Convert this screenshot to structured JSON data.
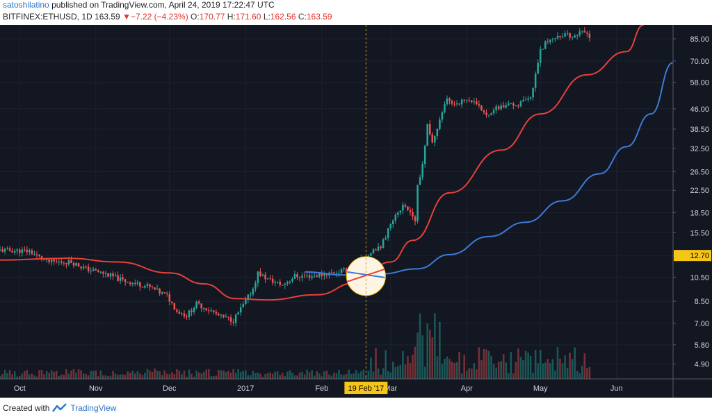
{
  "header": {
    "author": "satoshilatino",
    "published": "published on TradingView.com, April 24, 2019 17:22:47 UTC",
    "symbol": "BITFINEX:ETHUSD, 1D",
    "last": "163.59",
    "change": "−7.22 (−4.23%)",
    "o_label": "O:",
    "o": "170.77",
    "h_label": "H:",
    "h": "171.60",
    "l_label": "L:",
    "l": "162.56",
    "c_label": "C:",
    "c": "163.59",
    "down_arrow": "▼"
  },
  "footer": {
    "created_with": "Created with",
    "brand": "TradingView",
    "logo_icon": "tradingview-logo-icon"
  },
  "colors": {
    "background": "#131722",
    "grid": "#1e2230",
    "up": "#26a69a",
    "down": "#ef5350",
    "ma_fast": "#e8403a",
    "ma_slow": "#3f7ad8",
    "axis_text": "#d1d4dc",
    "price_label_bg": "#f5c518",
    "highlight_circle": "#fdf4e3"
  },
  "chart_data": {
    "type": "candlestick",
    "symbol": "BITFINEX:ETHUSD",
    "interval": "1D",
    "y_scale": "log",
    "ylim": [
      4.3,
      96
    ],
    "x_range": [
      "2016-09-23",
      "2017-06-24"
    ],
    "y_ticks": [
      "85.00",
      "70.00",
      "58.00",
      "46.00",
      "38.50",
      "32.50",
      "26.50",
      "22.50",
      "18.50",
      "15.50",
      "12.70",
      "10.50",
      "8.50",
      "7.00",
      "5.80",
      "4.90"
    ],
    "x_ticks": [
      {
        "label": "Oct",
        "date": "2016-10-01"
      },
      {
        "label": "Nov",
        "date": "2016-11-01"
      },
      {
        "label": "Dec",
        "date": "2016-12-01"
      },
      {
        "label": "2017",
        "date": "2017-01-01"
      },
      {
        "label": "Feb",
        "date": "2017-02-01"
      },
      {
        "label": "Mar",
        "date": "2017-03-01"
      },
      {
        "label": "Apr",
        "date": "2017-04-01"
      },
      {
        "label": "May",
        "date": "2017-05-01"
      },
      {
        "label": "Jun",
        "date": "2017-06-01"
      }
    ],
    "price_label": "12.70",
    "crosshair_date_label": "19 Feb '17",
    "highlight": {
      "date": "2017-02-19",
      "price": 10.6
    },
    "close_anchors": [
      [
        "2016-09-23",
        13.3
      ],
      [
        "2016-10-05",
        13.2
      ],
      [
        "2016-10-12",
        12.0
      ],
      [
        "2016-10-22",
        12.0
      ],
      [
        "2016-10-28",
        11.3
      ],
      [
        "2016-11-05",
        10.8
      ],
      [
        "2016-11-12",
        10.2
      ],
      [
        "2016-11-22",
        9.7
      ],
      [
        "2016-11-30",
        8.9
      ],
      [
        "2016-12-04",
        7.8
      ],
      [
        "2016-12-08",
        7.5
      ],
      [
        "2016-12-12",
        8.3
      ],
      [
        "2016-12-17",
        7.9
      ],
      [
        "2016-12-22",
        7.4
      ],
      [
        "2016-12-27",
        7.2
      ],
      [
        "2016-12-31",
        8.2
      ],
      [
        "2017-01-04",
        9.5
      ],
      [
        "2017-01-06",
        10.9
      ],
      [
        "2017-01-10",
        10.3
      ],
      [
        "2017-01-16",
        9.8
      ],
      [
        "2017-01-21",
        10.6
      ],
      [
        "2017-01-28",
        10.6
      ],
      [
        "2017-02-05",
        10.9
      ],
      [
        "2017-02-12",
        11.2
      ],
      [
        "2017-02-19",
        12.6
      ],
      [
        "2017-02-25",
        13.7
      ],
      [
        "2017-03-02",
        17.6
      ],
      [
        "2017-03-06",
        19.7
      ],
      [
        "2017-03-09",
        18.9
      ],
      [
        "2017-03-11",
        17.2
      ],
      [
        "2017-03-12",
        23.2
      ],
      [
        "2017-03-14",
        28.5
      ],
      [
        "2017-03-16",
        40.0
      ],
      [
        "2017-03-18",
        34.5
      ],
      [
        "2017-03-21",
        42.0
      ],
      [
        "2017-03-24",
        50.0
      ],
      [
        "2017-03-26",
        48.0
      ],
      [
        "2017-04-02",
        50.0
      ],
      [
        "2017-04-09",
        44.0
      ],
      [
        "2017-04-15",
        47.0
      ],
      [
        "2017-04-21",
        47.5
      ],
      [
        "2017-04-27",
        50.0
      ],
      [
        "2017-05-01",
        78.0
      ],
      [
        "2017-05-05",
        85.0
      ],
      [
        "2017-05-10",
        88.0
      ],
      [
        "2017-05-14",
        87.0
      ],
      [
        "2017-05-18",
        90.0
      ],
      [
        "2017-05-21",
        87.0
      ]
    ],
    "ma_fast": [
      [
        "2016-09-23",
        12.2
      ],
      [
        "2016-10-20",
        12.4
      ],
      [
        "2016-11-10",
        12.0
      ],
      [
        "2016-12-01",
        10.9
      ],
      [
        "2016-12-15",
        9.9
      ],
      [
        "2016-12-28",
        8.7
      ],
      [
        "2017-01-10",
        8.6
      ],
      [
        "2017-01-30",
        9.0
      ],
      [
        "2017-02-15",
        10.0
      ],
      [
        "2017-03-01",
        12.0
      ],
      [
        "2017-03-10",
        14.5
      ],
      [
        "2017-03-25",
        22.0
      ],
      [
        "2017-04-15",
        32.0
      ],
      [
        "2017-05-01",
        44.0
      ],
      [
        "2017-05-20",
        62.0
      ],
      [
        "2017-06-05",
        76.0
      ],
      [
        "2017-06-12",
        96.0
      ]
    ],
    "ma_slow": [
      [
        "2017-01-25",
        11.0
      ],
      [
        "2017-02-10",
        10.7
      ],
      [
        "2017-02-25",
        10.8
      ],
      [
        "2017-03-12",
        11.3
      ],
      [
        "2017-03-25",
        12.8
      ],
      [
        "2017-04-10",
        15.0
      ],
      [
        "2017-04-25",
        17.0
      ],
      [
        "2017-05-10",
        20.5
      ],
      [
        "2017-05-25",
        26.0
      ],
      [
        "2017-06-05",
        33.0
      ],
      [
        "2017-06-15",
        44.0
      ],
      [
        "2017-06-24",
        69.0
      ]
    ]
  }
}
